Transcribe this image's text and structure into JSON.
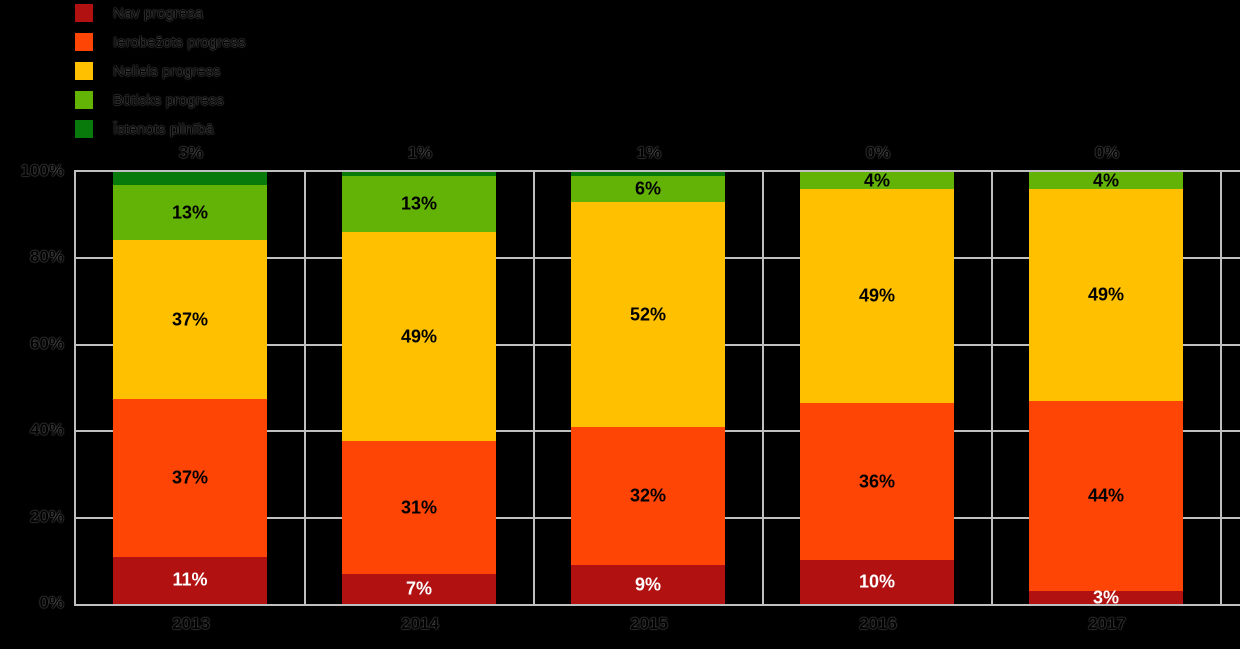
{
  "colors": {
    "background": "#000000",
    "grid": "#BFBFBF",
    "inside_label_dark": "#000000",
    "inside_label_light": "#FFFFFF"
  },
  "legend": {
    "items": [
      {
        "label": "Nav progresa",
        "color": "#B11111"
      },
      {
        "label": "Ierobežots progress",
        "color": "#FF4505"
      },
      {
        "label": "Neliels progress",
        "color": "#FFC000"
      },
      {
        "label": "Būtisks progress",
        "color": "#63B306"
      },
      {
        "label": "Īstenots pilnībā",
        "color": "#087A0C"
      }
    ]
  },
  "axes": {
    "y_ticks": [
      "100%",
      "80%",
      "60%",
      "40%",
      "20%",
      "0%"
    ],
    "x_ticks": [
      "2013",
      "2014",
      "2015",
      "2016",
      "2017"
    ]
  },
  "chart_data": {
    "type": "bar",
    "stacked": true,
    "title": "",
    "xlabel": "",
    "ylabel": "",
    "ylim": [
      0,
      100
    ],
    "grid": true,
    "legend_position": "top-left",
    "categories": [
      "2013",
      "2014",
      "2015",
      "2016",
      "2017"
    ],
    "series": [
      {
        "name": "Nav progresa",
        "color": "#B11111",
        "values": [
          11,
          7,
          9,
          10,
          3
        ],
        "labels": [
          "11%",
          "7%",
          "9%",
          "10%",
          "3%"
        ],
        "label_color": "#FFFFFF",
        "label_position": "inside"
      },
      {
        "name": "Ierobežots progress",
        "color": "#FF4505",
        "values": [
          37,
          31,
          32,
          36,
          44
        ],
        "labels": [
          "37%",
          "31%",
          "32%",
          "36%",
          "44%"
        ],
        "label_color": "#000000",
        "label_position": "inside"
      },
      {
        "name": "Neliels progress",
        "color": "#FFC000",
        "values": [
          37,
          49,
          52,
          49,
          49
        ],
        "labels": [
          "37%",
          "49%",
          "52%",
          "49%",
          "49%"
        ],
        "label_color": "#000000",
        "label_position": "inside"
      },
      {
        "name": "Būtisks progress",
        "color": "#63B306",
        "values": [
          13,
          13,
          6,
          4,
          4
        ],
        "labels": [
          "13%",
          "13%",
          "6%",
          "4%",
          "4%"
        ],
        "label_color": "#000000",
        "label_position": "inside"
      },
      {
        "name": "Īstenots pilnībā",
        "color": "#087A0C",
        "values": [
          3,
          1,
          1,
          0,
          0
        ],
        "labels": [
          "3%",
          "1%",
          "1%",
          "0%",
          "0%"
        ],
        "label_color": "#000000",
        "label_position": "above"
      }
    ]
  }
}
